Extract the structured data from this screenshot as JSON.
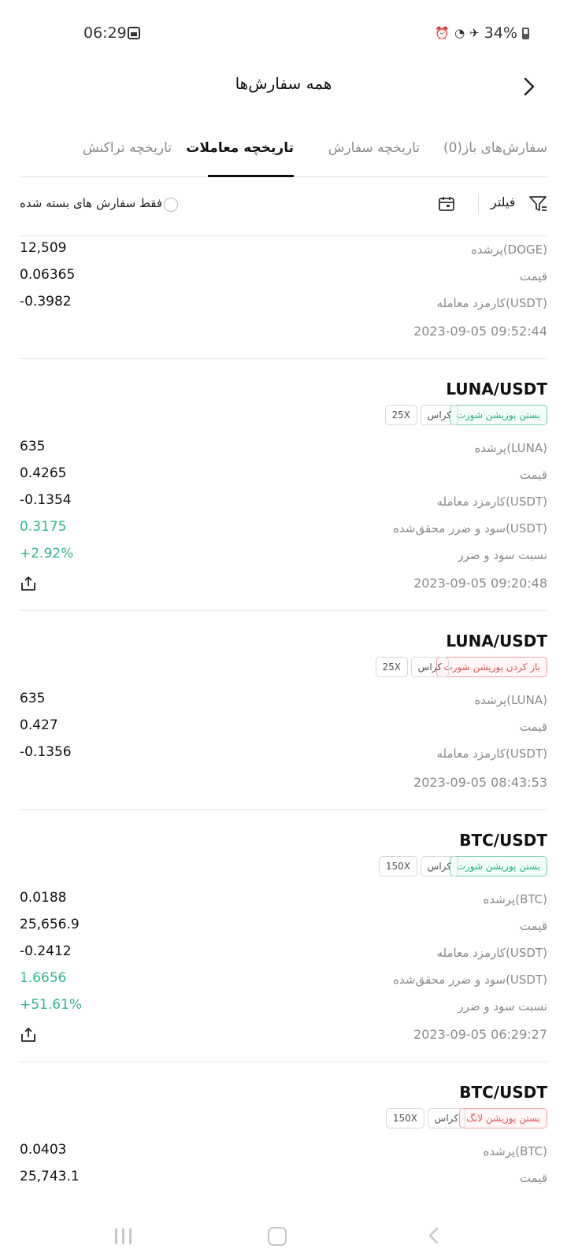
{
  "status": {
    "time": "06:29",
    "battery": "34%"
  },
  "header": {
    "title": "همه سفارش‌ها"
  },
  "tabs": [
    {
      "label": "سفارش‌های باز(0)"
    },
    {
      "label": "تاریخچه سفارش"
    },
    {
      "label": "تاریخچه معاملات",
      "active": true
    },
    {
      "label": "تاریخچه تراکنش"
    }
  ],
  "filter": {
    "closed_only_label": "فقط سفارش های بسته شده",
    "filter_label": "فیلتر"
  },
  "trades": [
    {
      "rows": [
        {
          "label": "پرشده(DOGE)",
          "value": "12,509"
        },
        {
          "label": "قیمت",
          "value": "0.06365"
        },
        {
          "label": "کارمزد معامله(USDT)",
          "value": "-0.3982"
        }
      ],
      "timestamp": "2023-09-05 09:52:44"
    },
    {
      "pair": "LUNA/USDT",
      "tags": {
        "action": "بستن پوزیشن شورت",
        "margin": "کراس",
        "leverage": "25X"
      },
      "rows": [
        {
          "label": "پرشده(LUNA)",
          "value": "635"
        },
        {
          "label": "قیمت",
          "value": "0.4265"
        },
        {
          "label": "کارمزد معامله(USDT)",
          "value": "-0.1354"
        },
        {
          "label": "سود و ضرر محقق‌شده(USDT)",
          "value": "0.3175"
        },
        {
          "label": "نسبت سود و ضرر",
          "value": "+2.92%"
        }
      ],
      "timestamp": "2023-09-05 09:20:48"
    },
    {
      "pair": "LUNA/USDT",
      "tags": {
        "action": "باز کردن پوزیشن شورت",
        "margin": "کراس",
        "leverage": "25X"
      },
      "rows": [
        {
          "label": "پرشده(LUNA)",
          "value": "635"
        },
        {
          "label": "قیمت",
          "value": "0.427"
        },
        {
          "label": "کارمزد معامله(USDT)",
          "value": "-0.1356"
        }
      ],
      "timestamp": "2023-09-05 08:43:53"
    },
    {
      "pair": "BTC/USDT",
      "tags": {
        "action": "بستن پوزیشن شورت",
        "margin": "کراس",
        "leverage": "150X"
      },
      "rows": [
        {
          "label": "پرشده(BTC)",
          "value": "0.0188"
        },
        {
          "label": "قیمت",
          "value": "25,656.9"
        },
        {
          "label": "کارمزد معامله(USDT)",
          "value": "-0.2412"
        },
        {
          "label": "سود و ضرر محقق‌شده(USDT)",
          "value": "1.6656"
        },
        {
          "label": "نسبت سود و ضرر",
          "value": "+51.61%"
        }
      ],
      "timestamp": "2023-09-05 06:29:27"
    },
    {
      "pair": "BTC/USDT",
      "tags": {
        "action": "بستن پوزیشن لانگ",
        "margin": "کراس",
        "leverage": "150X"
      },
      "rows": [
        {
          "label": "پرشده(BTC)",
          "value": "0.0403"
        },
        {
          "label": "قیمت",
          "value": "25,743.1"
        }
      ]
    }
  ],
  "colors": {
    "profit": "#2fba84",
    "close_tag": "#24b47e",
    "open_tag": "#e05757"
  }
}
